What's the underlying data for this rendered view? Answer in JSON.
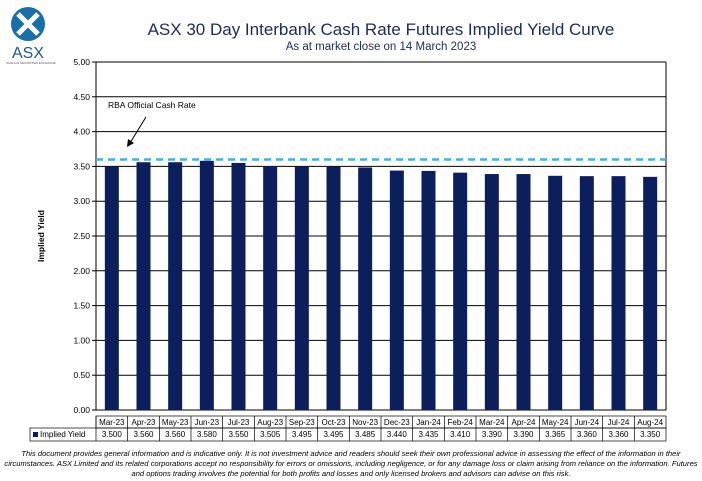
{
  "logo": {
    "text": "ASX",
    "tagline": "AUSTRALIAN SECURITIES EXCHANGE"
  },
  "chart_data": {
    "type": "bar",
    "title": "ASX 30 Day Interbank Cash Rate Futures Implied Yield Curve",
    "subtitle": "As at market close on 14 March 2023",
    "ylabel": "Implied Yield",
    "ylim": [
      0,
      5
    ],
    "yticks": [
      "0.00",
      "0.50",
      "1.00",
      "1.50",
      "2.00",
      "2.50",
      "3.00",
      "3.50",
      "4.00",
      "4.50",
      "5.00"
    ],
    "grid": true,
    "categories": [
      "Mar-23",
      "Apr-23",
      "May-23",
      "Jun-23",
      "Jul-23",
      "Aug-23",
      "Sep-23",
      "Oct-23",
      "Nov-23",
      "Dec-23",
      "Jan-24",
      "Feb-24",
      "Mar-24",
      "Apr-24",
      "May-24",
      "Jun-24",
      "Jul-24",
      "Aug-24"
    ],
    "series": [
      {
        "name": "Implied Yield",
        "values": [
          3.5,
          3.56,
          3.56,
          3.58,
          3.55,
          3.505,
          3.495,
          3.495,
          3.485,
          3.44,
          3.435,
          3.41,
          3.39,
          3.39,
          3.365,
          3.36,
          3.36,
          3.35
        ],
        "labels": [
          "3.500",
          "3.560",
          "3.560",
          "3.580",
          "3.550",
          "3.505",
          "3.495",
          "3.495",
          "3.485",
          "3.440",
          "3.435",
          "3.410",
          "3.390",
          "3.390",
          "3.365",
          "3.360",
          "3.360",
          "3.350"
        ],
        "color": "#0c1f5c"
      }
    ],
    "reference_line": {
      "label": "RBA Official Cash Rate",
      "value": 3.6,
      "color": "#3cb4e6"
    },
    "data_table": true
  },
  "disclaimer": "This document provides general information and is indicative only. It is not investment advice and readers should seek their own professional advice in assessing the effect of the information in their circumstances. ASX Limited and its related corporations accept no responsibility for errors or omissions, including negligence, or for any damage loss or claim arising from reliance on the information. Futures and options trading involves the potential for both profits and losses and only licensed brokers and advisors can advise on this risk."
}
